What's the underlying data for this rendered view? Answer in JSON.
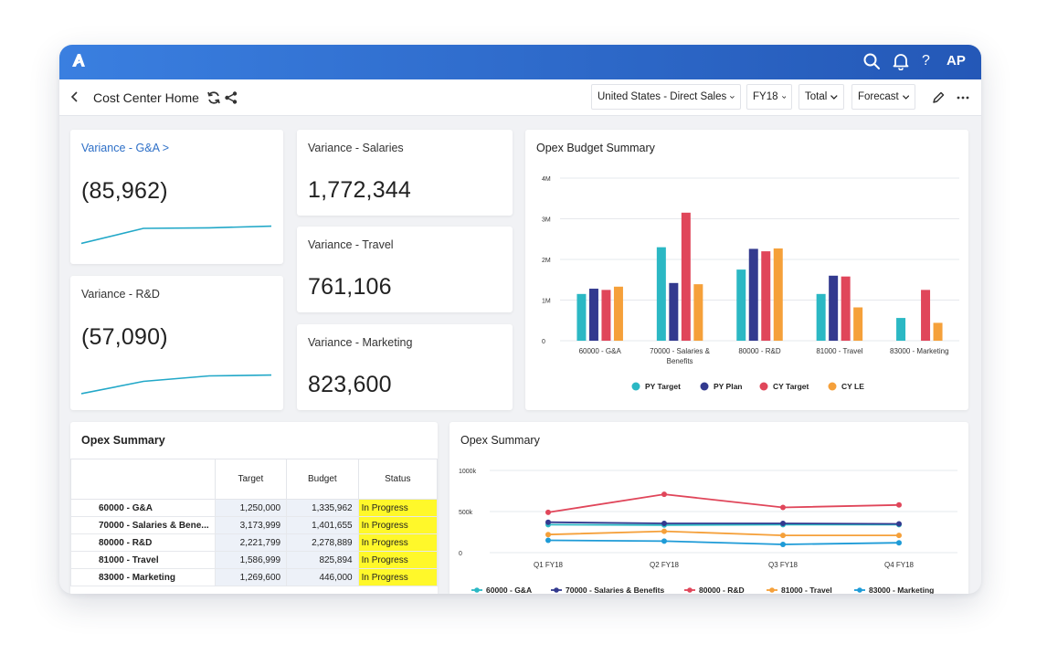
{
  "app": {
    "user_initials": "AP",
    "help_label": "?"
  },
  "toolbar": {
    "title": "Cost Center Home",
    "filters": {
      "region": "United States - Direct Sales",
      "year": "FY18",
      "total": "Total",
      "version": "Forecast"
    }
  },
  "kpis": [
    {
      "title": "Variance - G&A",
      "title_suffix": ">",
      "value": "(85,962)",
      "trend": [
        0.25,
        0.8,
        0.82,
        0.88
      ]
    },
    {
      "title": "Variance - R&D",
      "value": "(57,090)",
      "trend": [
        0.1,
        0.55,
        0.75,
        0.78
      ]
    },
    {
      "title": "Variance - Salaries",
      "value": "1,772,344"
    },
    {
      "title": "Variance - Travel",
      "value": "761,106"
    },
    {
      "title": "Variance - Marketing",
      "value": "823,600"
    }
  ],
  "budget_summary": {
    "title": "Opex Budget Summary"
  },
  "opex_table": {
    "title": "Opex Summary",
    "columns": [
      "Target",
      "Budget",
      "Status"
    ],
    "rows": [
      {
        "name": "60000 - G&A",
        "target": "1,250,000",
        "budget": "1,335,962",
        "status": "In Progress"
      },
      {
        "name": "70000 - Salaries & Bene...",
        "target": "3,173,999",
        "budget": "1,401,655",
        "status": "In Progress"
      },
      {
        "name": "80000 - R&D",
        "target": "2,221,799",
        "budget": "2,278,889",
        "status": "In Progress"
      },
      {
        "name": "81000 - Travel",
        "target": "1,586,999",
        "budget": "825,894",
        "status": "In Progress"
      },
      {
        "name": "83000 - Marketing",
        "target": "1,269,600",
        "budget": "446,000",
        "status": "In Progress"
      }
    ]
  },
  "line_summary": {
    "title": "Opex Summary"
  },
  "colors": {
    "teal": "#2bb8c4",
    "navy": "#333a8f",
    "red": "#e0465a",
    "orange": "#f5a03a",
    "sky": "#1e9bd7",
    "spark": "#22a8c8",
    "topbar": "#2a64c4",
    "status_bg": "#fff82a"
  },
  "chart_data": [
    {
      "type": "bar",
      "title": "Opex Budget Summary",
      "categories": [
        "60000 - G&A",
        "70000 - Salaries & Benefits",
        "80000 - R&D",
        "81000 - Travel",
        "83000 - Marketing"
      ],
      "yticks": [
        "0",
        "1M",
        "2M",
        "3M",
        "4M"
      ],
      "ylim": [
        0,
        4000000
      ],
      "series": [
        {
          "name": "PY Target",
          "color": "#2bb8c4",
          "values": [
            1150000,
            2300000,
            1750000,
            1150000,
            560000
          ]
        },
        {
          "name": "PY Plan",
          "color": "#333a8f",
          "values": [
            1280000,
            1420000,
            2260000,
            1600000,
            0
          ]
        },
        {
          "name": "CY Target",
          "color": "#e0465a",
          "values": [
            1250000,
            3150000,
            2200000,
            1580000,
            1250000
          ]
        },
        {
          "name": "CY LE",
          "color": "#f5a03a",
          "values": [
            1330000,
            1390000,
            2270000,
            820000,
            440000
          ]
        }
      ],
      "legend": "bottom",
      "grid": true
    },
    {
      "type": "line",
      "title": "Opex Summary",
      "categories": [
        "Q1 FY18",
        "Q2 FY18",
        "Q3 FY18",
        "Q4 FY18"
      ],
      "yticks": [
        "0",
        "500k",
        "1000k"
      ],
      "ylim": [
        0,
        1000000
      ],
      "series": [
        {
          "name": "60000 - G&A",
          "color": "#2bb8c4",
          "values": [
            340000,
            335000,
            340000,
            340000
          ]
        },
        {
          "name": "70000 - Salaries & Benefits",
          "color": "#333a8f",
          "values": [
            370000,
            355000,
            355000,
            350000
          ]
        },
        {
          "name": "80000 - R&D",
          "color": "#e0465a",
          "values": [
            490000,
            710000,
            550000,
            580000
          ]
        },
        {
          "name": "81000 - Travel",
          "color": "#f5a03a",
          "values": [
            220000,
            260000,
            210000,
            210000
          ]
        },
        {
          "name": "83000 - Marketing",
          "color": "#1e9bd7",
          "values": [
            150000,
            140000,
            100000,
            120000
          ]
        }
      ],
      "legend": "bottom",
      "grid": true
    }
  ]
}
